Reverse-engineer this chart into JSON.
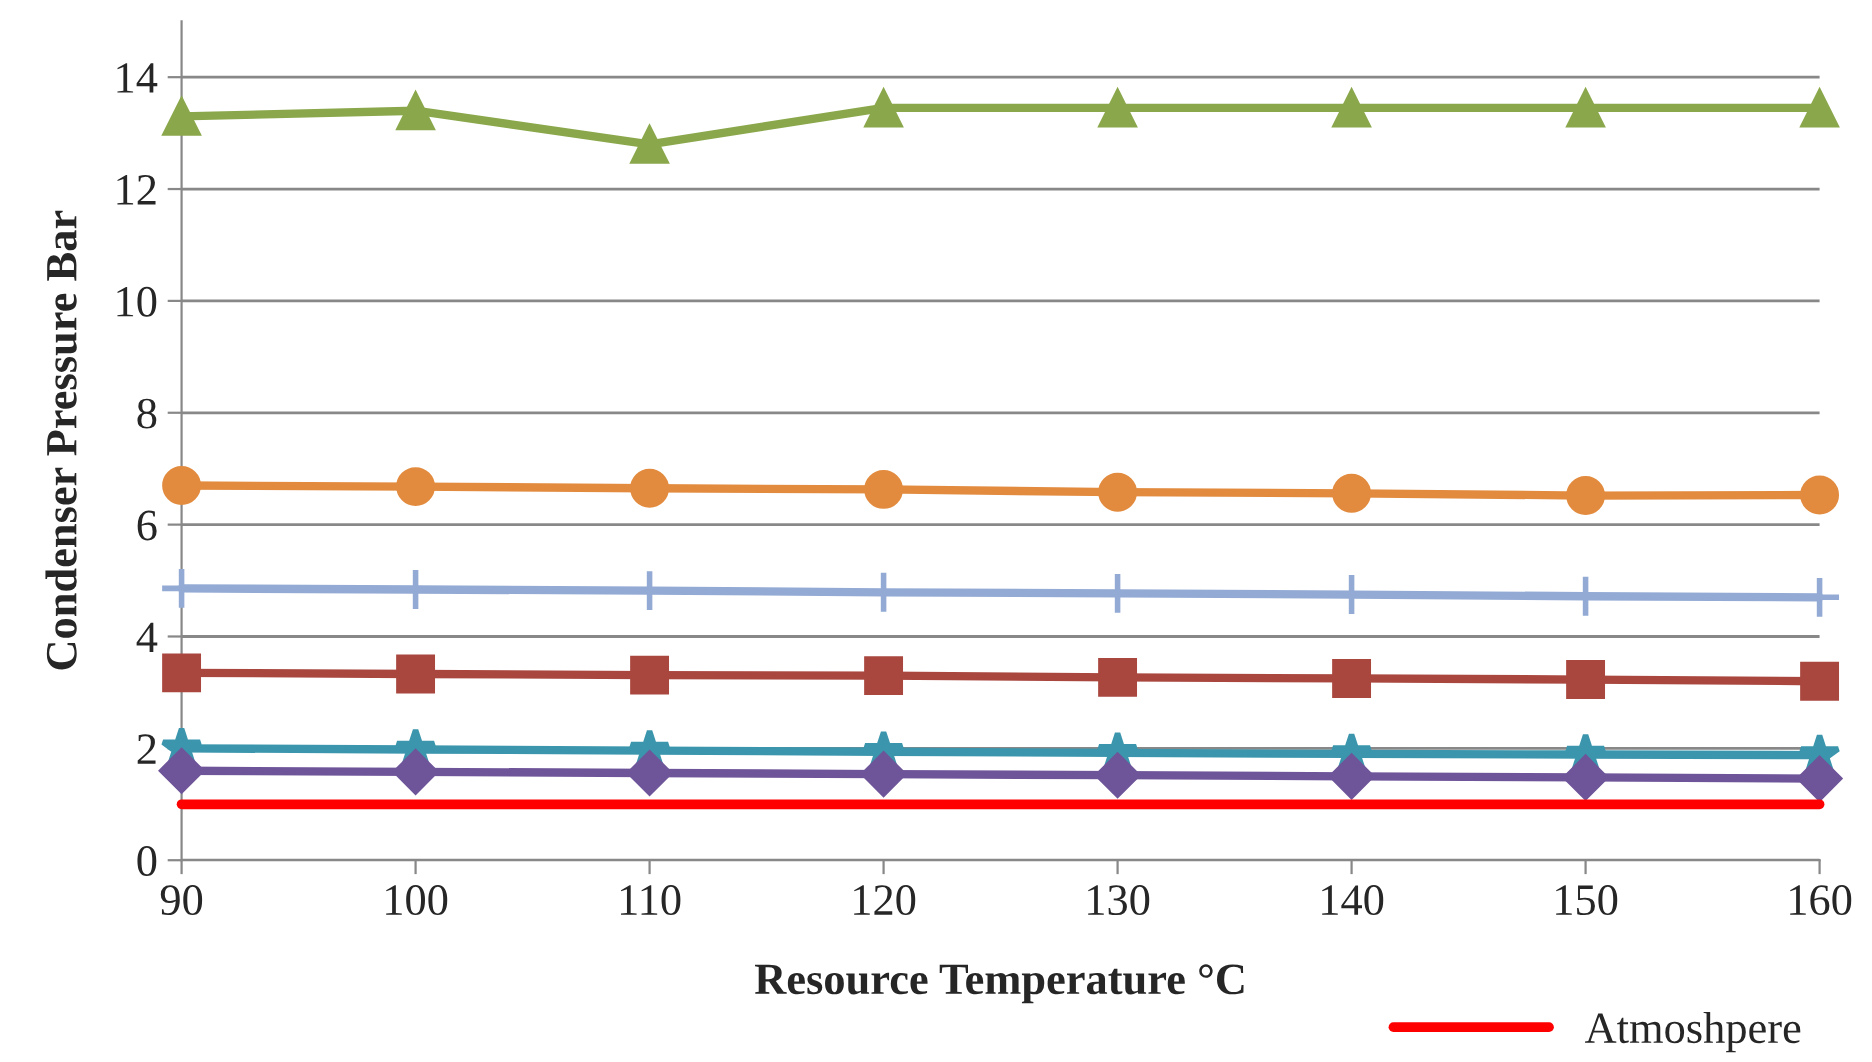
{
  "chart_data": {
    "type": "line",
    "xlabel": "Resource Temperature °C",
    "ylabel": "Condenser Pressure Bar",
    "x": [
      90,
      100,
      110,
      120,
      130,
      140,
      150,
      160
    ],
    "series": [
      {
        "color": "#8aa84b",
        "marker": "triangle",
        "values": [
          13.3,
          13.4,
          12.8,
          13.45,
          13.45,
          13.45,
          13.45,
          13.45
        ]
      },
      {
        "color": "#e28b3f",
        "marker": "circle",
        "values": [
          6.7,
          6.68,
          6.65,
          6.63,
          6.58,
          6.56,
          6.52,
          6.53
        ]
      },
      {
        "color": "#93aad4",
        "marker": "cross",
        "values": [
          4.86,
          4.84,
          4.82,
          4.79,
          4.77,
          4.75,
          4.72,
          4.7
        ]
      },
      {
        "color": "#a9473f",
        "marker": "square",
        "values": [
          3.35,
          3.33,
          3.31,
          3.3,
          3.27,
          3.25,
          3.23,
          3.2
        ]
      },
      {
        "color": "#3b96ad",
        "marker": "star",
        "values": [
          2.0,
          1.98,
          1.96,
          1.94,
          1.92,
          1.9,
          1.89,
          1.88
        ]
      },
      {
        "color": "#6e5499",
        "marker": "diamond",
        "values": [
          1.6,
          1.58,
          1.56,
          1.54,
          1.52,
          1.5,
          1.48,
          1.46
        ]
      },
      {
        "name": "Atmoshpere",
        "color": "#ff0000",
        "marker": "none",
        "values": [
          1,
          1,
          1,
          1,
          1,
          1,
          1,
          1
        ]
      }
    ],
    "xlim": [
      90,
      160
    ],
    "xticks": [
      90,
      100,
      110,
      120,
      130,
      140,
      150,
      160
    ],
    "ylim": [
      0,
      15
    ],
    "yticks": [
      0,
      2,
      4,
      6,
      8,
      10,
      12,
      14
    ],
    "grid": "y",
    "legend": "bottom right",
    "line_style": "solid"
  }
}
